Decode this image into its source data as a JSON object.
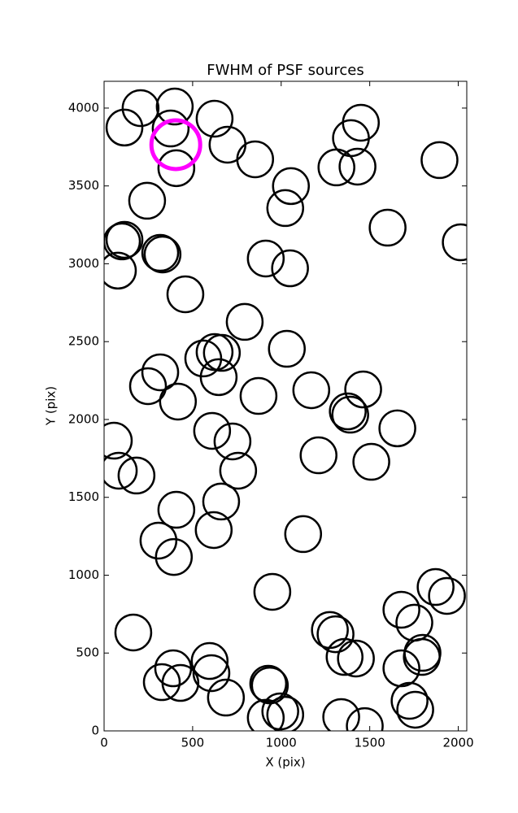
{
  "chart_data": {
    "type": "scatter",
    "title": "FWHM of PSF sources",
    "x_label": "X (pix)",
    "y_label": "Y (pix)",
    "xlim": [
      0,
      2048
    ],
    "ylim": [
      0,
      4172
    ],
    "xticks": [
      0,
      500,
      1000,
      1500,
      2000
    ],
    "yticks": [
      0,
      500,
      1000,
      1500,
      2000,
      2500,
      3000,
      3500,
      4000
    ],
    "series": [
      {
        "color": "#000000",
        "x": [
          206,
          115,
          399,
          376,
          408,
          624,
          697,
          853,
          243,
          115,
          101,
          78,
          317,
          330,
          459,
          794,
          913,
          1050,
          1023,
          1055,
          1394,
          1450,
          1312,
          1431,
          1894,
          1601,
          2014,
          560,
          624,
          665,
          647,
          317,
          248,
          417,
          1032,
          872,
          1170,
          1463,
          1376,
          1390,
          1656,
          610,
          725,
          1211,
          1509,
          757,
          83,
          55,
          183,
          661,
          408,
          619,
          307,
          394,
          1124,
          950,
          1872,
          1936,
          1679,
          1752,
          1275,
          1307,
          165,
          1798,
          1794,
          1358,
          1422,
          1679,
          596,
          606,
          326,
          390,
          431,
          688,
          927,
          936,
          913,
          995,
          1023,
          1339,
          1472,
          1725,
          1757
        ],
        "y": [
          4000,
          3875,
          4010,
          3869,
          3614,
          3932,
          3765,
          3671,
          3405,
          3154,
          3144,
          2956,
          3070,
          3060,
          2804,
          2627,
          3034,
          2971,
          3358,
          3499,
          3807,
          3906,
          3619,
          3624,
          3666,
          3232,
          3138,
          2392,
          2433,
          2428,
          2272,
          2303,
          2214,
          2115,
          2454,
          2151,
          2188,
          2193,
          2052,
          2031,
          1943,
          1927,
          1859,
          1770,
          1728,
          1671,
          1671,
          1864,
          1640,
          1473,
          1420,
          1290,
          1222,
          1117,
          1264,
          893,
          924,
          867,
          778,
          695,
          648,
          621,
          632,
          501,
          475,
          475,
          465,
          402,
          449,
          371,
          313,
          402,
          308,
          214,
          303,
          292,
          84,
          125,
          104,
          89,
          31,
          193,
          136
        ]
      },
      {
        "color": "#ff00ff",
        "x": [
          405
        ],
        "y": [
          3765
        ]
      }
    ]
  }
}
